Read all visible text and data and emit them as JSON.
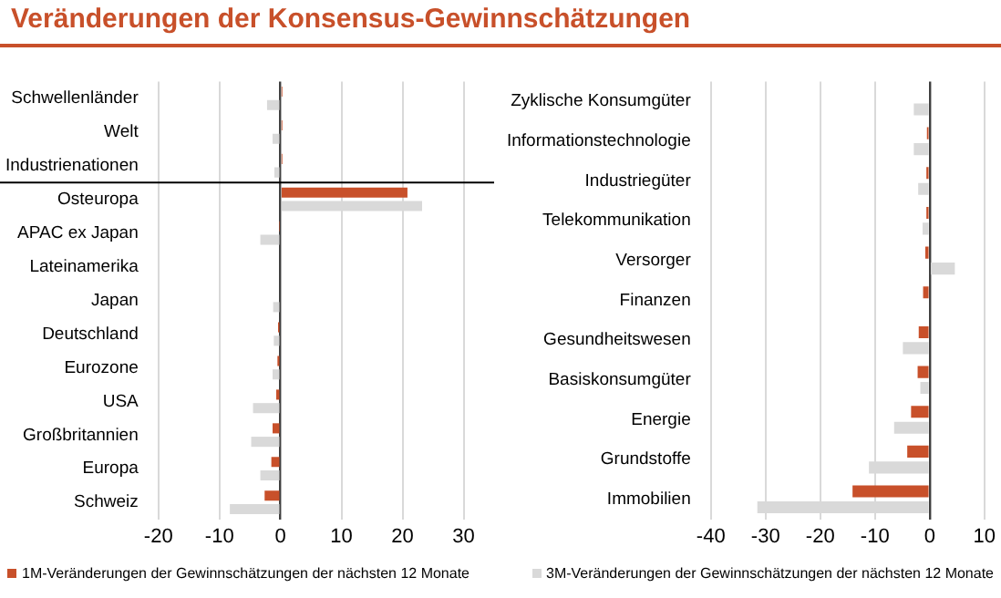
{
  "chart_data": [
    {
      "type": "bar",
      "orientation": "horizontal",
      "title": "Veränderungen der Konsensus-Gewinnschätzungen",
      "categories": [
        "Schwellenländer",
        "Welt",
        "Industrienationen",
        "Osteuropa",
        "APAC ex Japan",
        "Lateinamerika",
        "Japan",
        "Deutschland",
        "Eurozone",
        "USA",
        "Großbritannien",
        "Europa",
        "Schweiz"
      ],
      "series": [
        {
          "name": "1M-Veränderungen der Gewinnschätzungen der nächsten 12 Monate",
          "color": "#c8502a",
          "values": [
            0.3,
            0.3,
            0.3,
            20.8,
            -0.1,
            null,
            null,
            -0.4,
            -0.5,
            -0.7,
            -1.3,
            -1.5,
            -2.6
          ]
        },
        {
          "name": "3M-Veränderungen der Gewinnschätzungen der nächsten 12 Monate",
          "color": "#d9d9d9",
          "values": [
            -2.2,
            -1.3,
            -1.0,
            23.2,
            -3.3,
            null,
            -1.2,
            -1.1,
            -1.3,
            -4.5,
            -4.8,
            -3.3,
            -8.3
          ]
        }
      ],
      "xlim": [
        -20,
        35
      ],
      "xticks": [
        -20,
        -10,
        0,
        10,
        20,
        30
      ],
      "grid": "x",
      "legend": "bottom",
      "ref_lines": [
        {
          "axis": "y",
          "value": "Osteuropa",
          "color": "#000000"
        }
      ]
    },
    {
      "type": "bar",
      "orientation": "horizontal",
      "categories": [
        "Zyklische Konsumgüter",
        "Informationstechnologie",
        "Industriegüter",
        "Telekommunikation",
        "Versorger",
        "Finanzen",
        "Gesundheitswesen",
        "Basiskonsumgüter",
        "Energie",
        "Grundstoffe",
        "Immobilien"
      ],
      "series": [
        {
          "color": "#c8502a",
          "values": [
            null,
            -0.5,
            -0.6,
            -0.6,
            -0.8,
            -1.2,
            -2.0,
            -2.2,
            -3.4,
            -4.1,
            -14.1
          ]
        },
        {
          "color": "#d9d9d9",
          "values": [
            -2.9,
            -2.9,
            -2.1,
            -1.3,
            4.6,
            -0.2,
            -4.9,
            -1.7,
            -6.5,
            -11.1,
            -31.5
          ]
        }
      ],
      "xlim": [
        -40,
        10
      ],
      "xticks": [
        -40,
        -30,
        -20,
        -10,
        0,
        10
      ],
      "grid": "x"
    }
  ]
}
